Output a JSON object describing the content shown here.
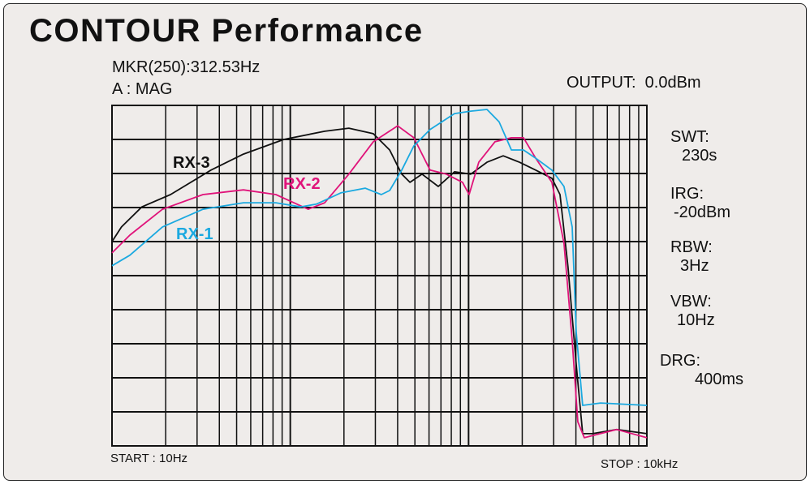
{
  "title": "CONTOUR Performance",
  "marker": "MKR(250):312.53Hz",
  "trace_mode": "A : MAG",
  "output": "OUTPUT:  0.0dBm",
  "settings": [
    {
      "label": "SWT:",
      "value": "230s"
    },
    {
      "label": "IRG:",
      "value": "-20dBm"
    },
    {
      "label": "RBW:",
      "value": "3Hz"
    },
    {
      "label": "VBW:",
      "value": "10Hz"
    },
    {
      "label": "DRG:",
      "value": "400ms"
    }
  ],
  "start": "START : 10Hz",
  "stop": "STOP : 10kHz",
  "chart_data": {
    "type": "line",
    "title": "CONTOUR Performance",
    "x_scale": "log",
    "xlim": [
      10,
      10000
    ],
    "ylim": [
      0,
      10
    ],
    "y_units": "grid divisions (unlabeled)",
    "grid": true,
    "series": [
      {
        "name": "RX-3",
        "color": "#111111",
        "x": [
          10,
          11.3,
          14.7,
          21.3,
          35.9,
          54.6,
          92,
          156,
          213,
          292,
          361,
          422,
          469,
          548,
          676,
          834,
          1028,
          1268,
          1564,
          1929,
          2378,
          2933,
          3258,
          3614,
          4018,
          4365,
          4955,
          6776,
          10000
        ],
        "y": [
          6.0,
          6.43,
          7.02,
          7.38,
          8.1,
          8.57,
          9.0,
          9.24,
          9.33,
          9.17,
          8.69,
          7.98,
          7.74,
          7.98,
          7.62,
          8.05,
          7.98,
          8.33,
          8.52,
          8.33,
          8.1,
          7.86,
          7.38,
          5.24,
          2.38,
          0.36,
          0.36,
          0.48,
          0.36
        ]
      },
      {
        "name": "RX-2",
        "color": "#e0137a",
        "x": [
          10,
          12.6,
          19.2,
          32.4,
          54.6,
          83,
          126,
          156,
          213,
          292,
          400,
          493,
          608,
          750,
          925,
          1007,
          1141,
          1406,
          1738,
          2032,
          2378,
          2933,
          3428,
          3811,
          4100,
          4456,
          6776,
          10000
        ],
        "y": [
          5.67,
          6.19,
          6.95,
          7.38,
          7.52,
          7.38,
          6.95,
          7.14,
          7.98,
          8.93,
          9.4,
          9.05,
          8.1,
          7.98,
          7.74,
          7.38,
          8.33,
          8.93,
          9.05,
          9.05,
          8.45,
          7.74,
          5.95,
          3.1,
          0.71,
          0.24,
          0.48,
          0.24
        ]
      },
      {
        "name": "RX-1",
        "color": "#1ba9e0",
        "x": [
          10,
          12.6,
          19.2,
          32.4,
          54.6,
          83,
          114,
          140,
          192,
          263,
          324,
          361,
          422,
          493,
          608,
          834,
          1028,
          1268,
          1483,
          1738,
          2032,
          2378,
          2933,
          3428,
          3811,
          4018,
          4365,
          5498,
          10000
        ],
        "y": [
          5.29,
          5.6,
          6.43,
          6.95,
          7.14,
          7.14,
          7.02,
          7.1,
          7.43,
          7.57,
          7.38,
          7.5,
          8.1,
          8.81,
          9.29,
          9.76,
          9.83,
          9.88,
          9.52,
          8.69,
          8.69,
          8.45,
          8.1,
          7.62,
          6.43,
          3.33,
          1.19,
          1.26,
          1.19
        ]
      }
    ]
  }
}
